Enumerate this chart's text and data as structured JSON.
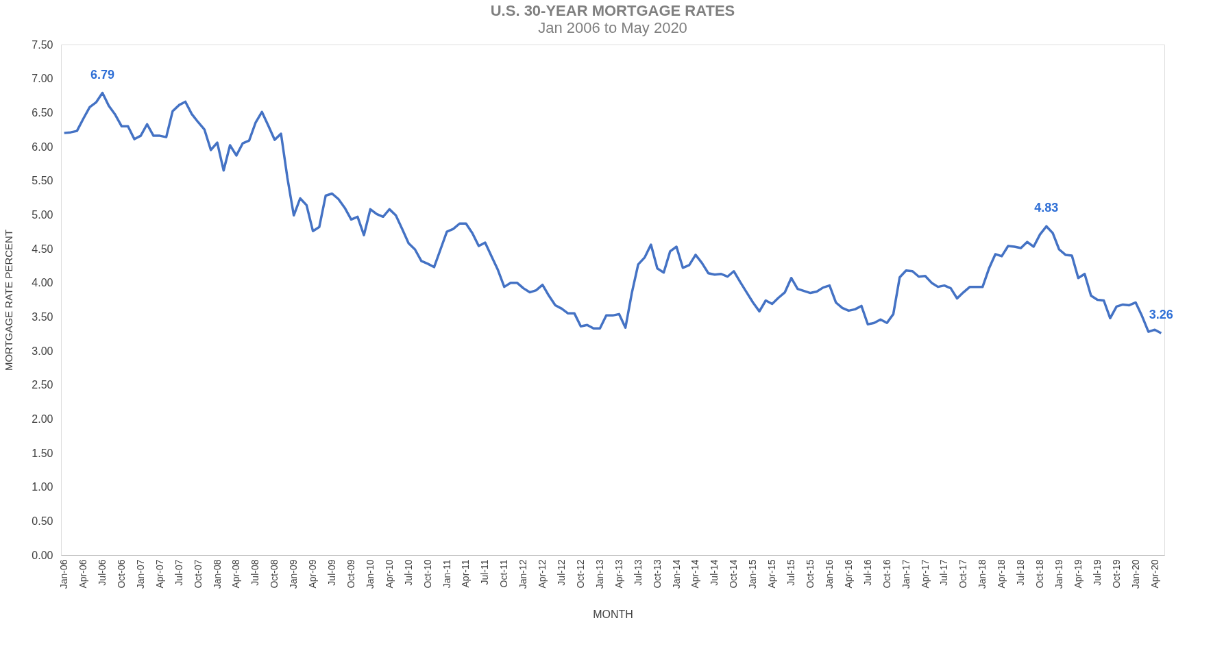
{
  "chart_data": {
    "type": "line",
    "title": "U.S. 30-YEAR MORTGAGE RATES",
    "subtitle": "Jan 2006 to May 2020",
    "xlabel": "MONTH",
    "ylabel": "MORTGAGE RATE PERCENT",
    "categories": [
      "Jan-06",
      null,
      null,
      "Apr-06",
      null,
      null,
      "Jul-06",
      null,
      null,
      "Oct-06",
      null,
      null,
      "Jan-07",
      null,
      null,
      "Apr-07",
      null,
      null,
      "Jul-07",
      null,
      null,
      "Oct-07",
      null,
      null,
      "Jan-08",
      null,
      null,
      "Apr-08",
      null,
      null,
      "Jul-08",
      null,
      null,
      "Oct-08",
      null,
      null,
      "Jan-09",
      null,
      null,
      "Apr-09",
      null,
      null,
      "Jul-09",
      null,
      null,
      "Oct-09",
      null,
      null,
      "Jan-10",
      null,
      null,
      "Apr-10",
      null,
      null,
      "Jul-10",
      null,
      null,
      "Oct-10",
      null,
      null,
      "Jan-11",
      null,
      null,
      "Apr-11",
      null,
      null,
      "Jul-11",
      null,
      null,
      "Oct-11",
      null,
      null,
      "Jan-12",
      null,
      null,
      "Apr-12",
      null,
      null,
      "Jul-12",
      null,
      null,
      "Oct-12",
      null,
      null,
      "Jan-13",
      null,
      null,
      "Apr-13",
      null,
      null,
      "Jul-13",
      null,
      null,
      "Oct-13",
      null,
      null,
      "Jan-14",
      null,
      null,
      "Apr-14",
      null,
      null,
      "Jul-14",
      null,
      null,
      "Oct-14",
      null,
      null,
      "Jan-15",
      null,
      null,
      "Apr-15",
      null,
      null,
      "Jul-15",
      null,
      null,
      "Oct-15",
      null,
      null,
      "Jan-16",
      null,
      null,
      "Apr-16",
      null,
      null,
      "Jul-16",
      null,
      null,
      "Oct-16",
      null,
      null,
      "Jan-17",
      null,
      null,
      "Apr-17",
      null,
      null,
      "Jul-17",
      null,
      null,
      "Oct-17",
      null,
      null,
      "Jan-18",
      null,
      null,
      "Apr-18",
      null,
      null,
      "Jul-18",
      null,
      null,
      "Oct-18",
      null,
      null,
      "Jan-19",
      null,
      null,
      "Apr-19",
      null,
      null,
      "Jul-19",
      null,
      null,
      "Oct-19",
      null,
      null,
      "Jan-20",
      null,
      null,
      "Apr-20",
      null
    ],
    "series": [
      {
        "color": "#4472c4",
        "values": [
          6.2,
          6.21,
          6.23,
          6.41,
          6.58,
          6.65,
          6.79,
          6.6,
          6.47,
          6.3,
          6.3,
          6.11,
          6.16,
          6.33,
          6.16,
          6.16,
          6.14,
          6.52,
          6.61,
          6.66,
          6.48,
          6.36,
          6.25,
          5.95,
          6.06,
          5.65,
          6.02,
          5.87,
          6.05,
          6.09,
          6.35,
          6.51,
          6.31,
          6.1,
          6.19,
          5.54,
          4.99,
          5.24,
          5.14,
          4.76,
          4.82,
          5.28,
          5.31,
          5.23,
          5.1,
          4.93,
          4.97,
          4.7,
          5.08,
          5.01,
          4.97,
          5.08,
          4.99,
          4.79,
          4.58,
          4.49,
          4.32,
          4.28,
          4.23,
          4.49,
          4.75,
          4.79,
          4.87,
          4.87,
          4.73,
          4.54,
          4.59,
          4.39,
          4.19,
          3.94,
          4.0,
          4.0,
          3.92,
          3.86,
          3.89,
          3.97,
          3.81,
          3.67,
          3.62,
          3.55,
          3.55,
          3.36,
          3.38,
          3.33,
          3.33,
          3.52,
          3.52,
          3.54,
          3.34,
          3.85,
          4.27,
          4.37,
          4.56,
          4.21,
          4.15,
          4.46,
          4.53,
          4.22,
          4.26,
          4.41,
          4.29,
          4.14,
          4.12,
          4.13,
          4.09,
          4.17,
          4.01,
          3.86,
          3.71,
          3.58,
          3.74,
          3.69,
          3.78,
          3.86,
          4.07,
          3.91,
          3.88,
          3.85,
          3.87,
          3.93,
          3.96,
          3.71,
          3.63,
          3.59,
          3.61,
          3.66,
          3.39,
          3.41,
          3.46,
          3.41,
          3.54,
          4.08,
          4.18,
          4.17,
          4.09,
          4.1,
          4.0,
          3.94,
          3.96,
          3.92,
          3.77,
          3.86,
          3.94,
          3.94,
          3.94,
          4.21,
          4.42,
          4.39,
          4.54,
          4.53,
          4.51,
          4.6,
          4.53,
          4.71,
          4.83,
          4.73,
          4.49,
          4.41,
          4.4,
          4.07,
          4.13,
          3.81,
          3.75,
          3.74,
          3.48,
          3.65,
          3.68,
          3.67,
          3.71,
          3.51,
          3.28,
          3.31,
          3.26
        ],
        "value_labels": [
          null,
          null,
          null,
          null,
          null,
          null,
          "6.79",
          null,
          null,
          null,
          null,
          null,
          null,
          null,
          null,
          null,
          null,
          null,
          null,
          null,
          null,
          null,
          null,
          null,
          null,
          null,
          null,
          null,
          null,
          null,
          null,
          null,
          null,
          null,
          null,
          null,
          null,
          null,
          null,
          null,
          null,
          null,
          null,
          null,
          null,
          null,
          null,
          null,
          null,
          null,
          null,
          null,
          null,
          null,
          null,
          null,
          null,
          null,
          null,
          null,
          null,
          null,
          null,
          null,
          null,
          null,
          null,
          null,
          null,
          null,
          null,
          null,
          null,
          null,
          null,
          null,
          null,
          null,
          null,
          null,
          null,
          null,
          null,
          null,
          null,
          null,
          null,
          null,
          null,
          null,
          null,
          null,
          null,
          null,
          null,
          null,
          null,
          null,
          null,
          null,
          null,
          null,
          null,
          null,
          null,
          null,
          null,
          null,
          null,
          null,
          null,
          null,
          null,
          null,
          null,
          null,
          null,
          null,
          null,
          null,
          null,
          null,
          null,
          null,
          null,
          null,
          null,
          null,
          null,
          null,
          null,
          null,
          null,
          null,
          null,
          null,
          null,
          null,
          null,
          null,
          null,
          null,
          null,
          null,
          null,
          null,
          null,
          null,
          null,
          null,
          null,
          null,
          null,
          null,
          "4.83",
          null,
          null,
          null,
          null,
          null,
          null,
          null,
          null,
          null,
          null,
          null,
          null,
          null,
          null,
          null,
          null,
          null,
          "3.26"
        ]
      }
    ],
    "ylim": [
      0,
      7.5
    ],
    "yticks": [
      {
        "value": 0,
        "label": "0.00"
      },
      {
        "value": 0.5,
        "label": "0.50"
      },
      {
        "value": 1,
        "label": "1.00"
      },
      {
        "value": 1.5,
        "label": "1.50"
      },
      {
        "value": 2,
        "label": "2.00"
      },
      {
        "value": 2.5,
        "label": "2.50"
      },
      {
        "value": 3,
        "label": "3.00"
      },
      {
        "value": 3.5,
        "label": "3.50"
      },
      {
        "value": 4,
        "label": "4.00"
      },
      {
        "value": 4.5,
        "label": "4.50"
      },
      {
        "value": 5,
        "label": "5.00"
      },
      {
        "value": 5.5,
        "label": "5.50"
      },
      {
        "value": 6,
        "label": "6.00"
      },
      {
        "value": 6.5,
        "label": "6.50"
      },
      {
        "value": 7,
        "label": "7.00"
      },
      {
        "value": 7.5,
        "label": "7.50"
      }
    ],
    "grid": false,
    "marker": "none",
    "line_style": "solid"
  }
}
